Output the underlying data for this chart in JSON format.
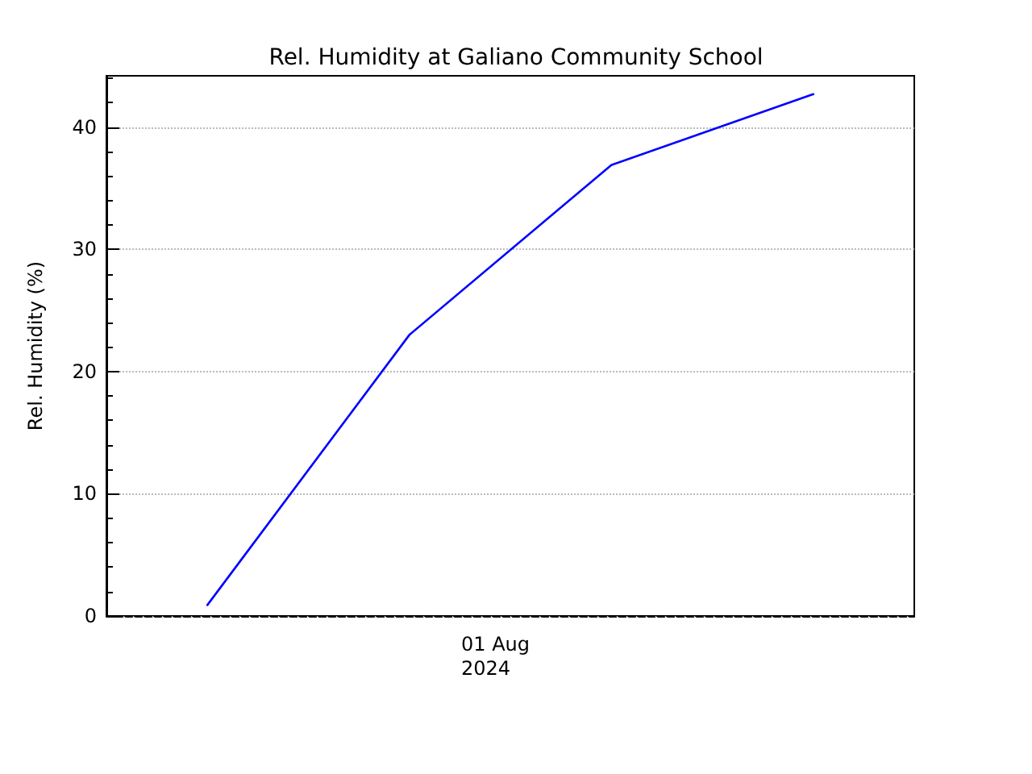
{
  "chart_data": {
    "type": "line",
    "title": "Rel. Humidity at Galiano Community School",
    "ylabel": "Rel. Humidity (%)",
    "categories": [
      null,
      null,
      null,
      null
    ],
    "series": [
      {
        "color": "#0000ff",
        "values": [
          0.9,
          23,
          36.9,
          42.7
        ]
      }
    ],
    "annotations": [
      "01 Aug\n2024"
    ],
    "ylim": [
      0,
      44.2
    ],
    "yticks": [
      0,
      10,
      20,
      30,
      40
    ],
    "grid": "y",
    "marker": "none",
    "line_style": "solid"
  }
}
